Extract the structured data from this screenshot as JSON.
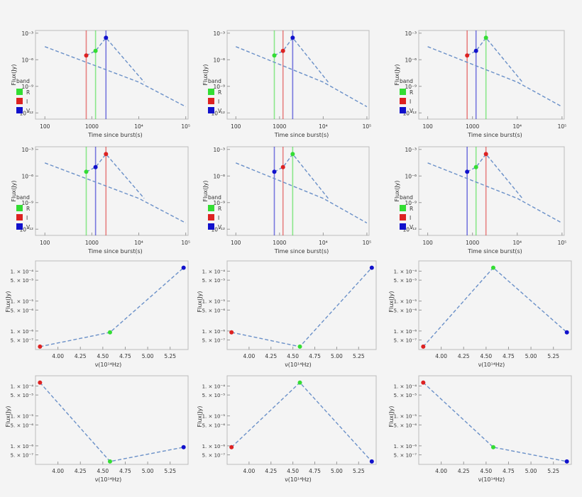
{
  "colors": {
    "R": "#33dd33",
    "I": "#dd2222",
    "V": "#1111cc",
    "model": "#6a90c8",
    "frame": "#bbbbbb"
  },
  "chart_data": [
    {
      "type": "line",
      "xlabel": "Time since burst(s)",
      "ylabel": "Flux(Jy)",
      "xscale": "log",
      "yscale": "log",
      "xticks": [
        "100",
        "1000",
        "10⁴",
        "10⁵"
      ],
      "yticks": [
        "10⁻³",
        "10⁻⁶",
        "10⁻⁹",
        "10⁻¹²"
      ],
      "legend": {
        "title": "band",
        "items": [
          "R",
          "I",
          "V"
        ]
      },
      "band_times": {
        "R": 1200,
        "I": 760,
        "V": 2000
      },
      "points": [
        {
          "band": "I",
          "x": 760,
          "y": 3e-06
        },
        {
          "band": "R",
          "x": 1200,
          "y": 1e-05
        },
        {
          "band": "V",
          "x": 2000,
          "y": 0.0003
        }
      ],
      "model": [
        [
          100,
          3e-05
        ],
        [
          1000,
          3e-07
        ],
        [
          10000,
          3e-09
        ],
        [
          100000,
          5e-12
        ]
      ],
      "model2": [
        [
          760,
          3e-06
        ],
        [
          1200,
          1e-05
        ],
        [
          2000,
          0.0003
        ],
        [
          13000,
          3e-09
        ]
      ]
    },
    {
      "type": "line",
      "xlabel": "Time since burst(s)",
      "ylabel": "Flux(Jy)",
      "xscale": "log",
      "yscale": "log",
      "xticks": [
        "100",
        "1000",
        "10⁴",
        "10⁵"
      ],
      "yticks": [
        "10⁻³",
        "10⁻⁶",
        "10⁻⁹",
        "10⁻¹²"
      ],
      "legend": {
        "title": "band",
        "items": [
          "R",
          "I",
          "V"
        ]
      },
      "band_times": {
        "R": 760,
        "I": 1200,
        "V": 2000
      },
      "points": [
        {
          "band": "R",
          "x": 760,
          "y": 3e-06
        },
        {
          "band": "I",
          "x": 1200,
          "y": 1e-05
        },
        {
          "band": "V",
          "x": 2000,
          "y": 0.0003
        }
      ],
      "model": [
        [
          100,
          3e-05
        ],
        [
          1000,
          3e-07
        ],
        [
          10000,
          3e-09
        ],
        [
          100000,
          5e-12
        ]
      ],
      "model2": [
        [
          760,
          3e-06
        ],
        [
          1200,
          1e-05
        ],
        [
          2000,
          0.0003
        ],
        [
          13000,
          3e-09
        ]
      ]
    },
    {
      "type": "line",
      "xlabel": "Time since burst(s)",
      "ylabel": "Flux(Jy)",
      "xscale": "log",
      "yscale": "log",
      "xticks": [
        "100",
        "1000",
        "10⁴",
        "10⁵"
      ],
      "yticks": [
        "10⁻³",
        "10⁻⁶",
        "10⁻⁹",
        "10⁻¹²"
      ],
      "legend": {
        "title": "band",
        "items": [
          "R",
          "I",
          "V"
        ]
      },
      "band_times": {
        "R": 2000,
        "I": 760,
        "V": 1200
      },
      "points": [
        {
          "band": "I",
          "x": 760,
          "y": 3e-06
        },
        {
          "band": "V",
          "x": 1200,
          "y": 1e-05
        },
        {
          "band": "R",
          "x": 2000,
          "y": 0.0003
        }
      ],
      "model": [
        [
          100,
          3e-05
        ],
        [
          1000,
          3e-07
        ],
        [
          10000,
          3e-09
        ],
        [
          100000,
          5e-12
        ]
      ],
      "model2": [
        [
          760,
          3e-06
        ],
        [
          1200,
          1e-05
        ],
        [
          2000,
          0.0003
        ],
        [
          13000,
          3e-09
        ]
      ]
    },
    {
      "type": "line",
      "xlabel": "Time since burst(s)",
      "ylabel": "Flux(Jy)",
      "xscale": "log",
      "yscale": "log",
      "xticks": [
        "100",
        "1000",
        "10⁴",
        "10⁵"
      ],
      "yticks": [
        "10⁻³",
        "10⁻⁶",
        "10⁻⁹",
        "10⁻¹²"
      ],
      "legend": {
        "title": "band",
        "items": [
          "R",
          "I",
          "V"
        ]
      },
      "band_times": {
        "R": 760,
        "I": 2000,
        "V": 1200
      },
      "points": [
        {
          "band": "R",
          "x": 760,
          "y": 3e-06
        },
        {
          "band": "V",
          "x": 1200,
          "y": 1e-05
        },
        {
          "band": "I",
          "x": 2000,
          "y": 0.0003
        }
      ],
      "model": [
        [
          100,
          3e-05
        ],
        [
          1000,
          3e-07
        ],
        [
          10000,
          3e-09
        ],
        [
          100000,
          5e-12
        ]
      ],
      "model2": [
        [
          760,
          3e-06
        ],
        [
          1200,
          1e-05
        ],
        [
          2000,
          0.0003
        ],
        [
          13000,
          3e-09
        ]
      ]
    },
    {
      "type": "line",
      "xlabel": "Time since burst(s)",
      "ylabel": "Flux(Jy)",
      "xscale": "log",
      "yscale": "log",
      "xticks": [
        "100",
        "1000",
        "10⁴",
        "10⁵"
      ],
      "yticks": [
        "10⁻³",
        "10⁻⁶",
        "10⁻⁹",
        "10⁻¹²"
      ],
      "legend": {
        "title": "band",
        "items": [
          "R",
          "I",
          "V"
        ]
      },
      "band_times": {
        "R": 2000,
        "I": 1200,
        "V": 760
      },
      "points": [
        {
          "band": "V",
          "x": 760,
          "y": 3e-06
        },
        {
          "band": "I",
          "x": 1200,
          "y": 1e-05
        },
        {
          "band": "R",
          "x": 2000,
          "y": 0.0003
        }
      ],
      "model": [
        [
          100,
          3e-05
        ],
        [
          1000,
          3e-07
        ],
        [
          10000,
          3e-09
        ],
        [
          100000,
          5e-12
        ]
      ],
      "model2": [
        [
          760,
          3e-06
        ],
        [
          1200,
          1e-05
        ],
        [
          2000,
          0.0003
        ],
        [
          13000,
          3e-09
        ]
      ]
    },
    {
      "type": "line",
      "xlabel": "Time since burst(s)",
      "ylabel": "Flux(Jy)",
      "xscale": "log",
      "yscale": "log",
      "xticks": [
        "100",
        "1000",
        "10⁴",
        "10⁵"
      ],
      "yticks": [
        "10⁻³",
        "10⁻⁶",
        "10⁻⁹",
        "10⁻¹²"
      ],
      "legend": {
        "title": "band",
        "items": [
          "R",
          "I",
          "V"
        ]
      },
      "band_times": {
        "R": 1200,
        "I": 2000,
        "V": 760
      },
      "points": [
        {
          "band": "V",
          "x": 760,
          "y": 3e-06
        },
        {
          "band": "R",
          "x": 1200,
          "y": 1e-05
        },
        {
          "band": "I",
          "x": 2000,
          "y": 0.0003
        }
      ],
      "model": [
        [
          100,
          3e-05
        ],
        [
          1000,
          3e-07
        ],
        [
          10000,
          3e-09
        ],
        [
          100000,
          5e-12
        ]
      ],
      "model2": [
        [
          760,
          3e-06
        ],
        [
          1200,
          1e-05
        ],
        [
          2000,
          0.0003
        ],
        [
          13000,
          3e-09
        ]
      ]
    },
    {
      "type": "line",
      "xlabel": "ν(10¹⁴Hz)",
      "ylabel": "Flux(Jy)",
      "yscale": "log",
      "xlim": [
        3.75,
        5.45
      ],
      "xticks": [
        "4.00",
        "4.25",
        "4.50",
        "4.75",
        "5.00",
        "5.25"
      ],
      "yticks": [
        "1. × 10⁻⁴",
        "5. × 10⁻⁵",
        "1. × 10⁻⁵",
        "5. × 10⁻⁶",
        "1. × 10⁻⁶",
        "5. × 10⁻⁷"
      ],
      "points": [
        {
          "band": "I",
          "x": 3.8,
          "y": 3e-07
        },
        {
          "band": "R",
          "x": 4.58,
          "y": 9e-07
        },
        {
          "band": "V",
          "x": 5.4,
          "y": 0.00013
        }
      ]
    },
    {
      "type": "line",
      "xlabel": "ν(10¹⁴Hz)",
      "ylabel": "Flux(Jy)",
      "yscale": "log",
      "xlim": [
        3.75,
        5.45
      ],
      "xticks": [
        "4.00",
        "4.25",
        "4.50",
        "4.75",
        "5.00",
        "5.25"
      ],
      "yticks": [
        "1. × 10⁻⁴",
        "5. × 10⁻⁵",
        "1. × 10⁻⁵",
        "5. × 10⁻⁶",
        "1. × 10⁻⁶",
        "5. × 10⁻⁷"
      ],
      "points": [
        {
          "band": "I",
          "x": 3.8,
          "y": 9e-07
        },
        {
          "band": "R",
          "x": 4.58,
          "y": 3e-07
        },
        {
          "band": "V",
          "x": 5.4,
          "y": 0.00013
        }
      ]
    },
    {
      "type": "line",
      "xlabel": "ν(10¹⁴Hz)",
      "ylabel": "Flux(Jy)",
      "yscale": "log",
      "xlim": [
        3.75,
        5.45
      ],
      "xticks": [
        "4.00",
        "4.25",
        "4.50",
        "4.75",
        "5.00",
        "5.25"
      ],
      "yticks": [
        "1. × 10⁻⁴",
        "5. × 10⁻⁵",
        "1. × 10⁻⁵",
        "5. × 10⁻⁶",
        "1. × 10⁻⁶",
        "5. × 10⁻⁷"
      ],
      "points": [
        {
          "band": "I",
          "x": 3.8,
          "y": 3e-07
        },
        {
          "band": "R",
          "x": 4.58,
          "y": 0.00013
        },
        {
          "band": "V",
          "x": 5.4,
          "y": 9e-07
        }
      ]
    },
    {
      "type": "line",
      "xlabel": "ν(10¹⁴Hz)",
      "ylabel": "Flux(Jy)",
      "yscale": "log",
      "xlim": [
        3.75,
        5.45
      ],
      "xticks": [
        "4.00",
        "4.25",
        "4.50",
        "4.75",
        "5.00",
        "5.25"
      ],
      "yticks": [
        "1. × 10⁻⁴",
        "5. × 10⁻⁵",
        "1. × 10⁻⁵",
        "5. × 10⁻⁶",
        "1. × 10⁻⁶",
        "5. × 10⁻⁷"
      ],
      "points": [
        {
          "band": "I",
          "x": 3.8,
          "y": 0.00013
        },
        {
          "band": "R",
          "x": 4.58,
          "y": 3e-07
        },
        {
          "band": "V",
          "x": 5.4,
          "y": 9e-07
        }
      ]
    },
    {
      "type": "line",
      "xlabel": "ν(10¹⁴Hz)",
      "ylabel": "Flux(Jy)",
      "yscale": "log",
      "xlim": [
        3.75,
        5.45
      ],
      "xticks": [
        "4.00",
        "4.25",
        "4.50",
        "4.75",
        "5.00",
        "5.25"
      ],
      "yticks": [
        "1. × 10⁻⁴",
        "5. × 10⁻⁵",
        "1. × 10⁻⁵",
        "5. × 10⁻⁶",
        "1. × 10⁻⁶",
        "5. × 10⁻⁷"
      ],
      "points": [
        {
          "band": "I",
          "x": 3.8,
          "y": 9e-07
        },
        {
          "band": "R",
          "x": 4.58,
          "y": 0.00013
        },
        {
          "band": "V",
          "x": 5.4,
          "y": 3e-07
        }
      ]
    },
    {
      "type": "line",
      "xlabel": "ν(10¹⁴Hz)",
      "ylabel": "Flux(Jy)",
      "yscale": "log",
      "xlim": [
        3.75,
        5.45
      ],
      "xticks": [
        "4.00",
        "4.25",
        "4.50",
        "4.75",
        "5.00",
        "5.25"
      ],
      "yticks": [
        "1. × 10⁻⁴",
        "5. × 10⁻⁵",
        "1. × 10⁻⁵",
        "5. × 10⁻⁶",
        "1. × 10⁻⁶",
        "5. × 10⁻⁷"
      ],
      "points": [
        {
          "band": "I",
          "x": 3.8,
          "y": 0.00013
        },
        {
          "band": "R",
          "x": 4.58,
          "y": 9e-07
        },
        {
          "band": "V",
          "x": 5.4,
          "y": 3e-07
        }
      ]
    }
  ]
}
